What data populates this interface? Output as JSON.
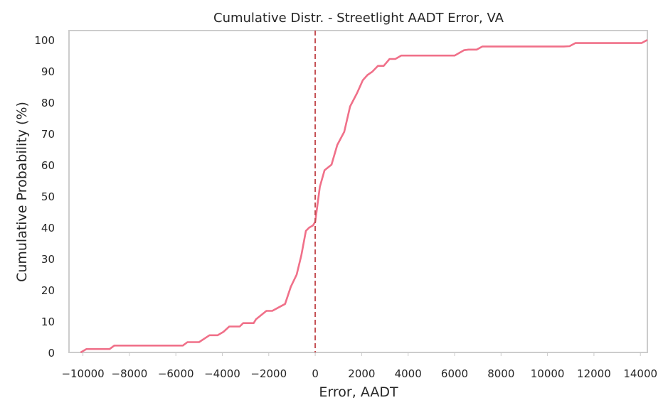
{
  "chart_data": {
    "type": "line",
    "title": "Cumulative Distr. - Streetlight AADT Error, VA",
    "xlabel": "Error, AADT",
    "ylabel": "Cumulative Probability (%)",
    "xlim": [
      -10600,
      14300
    ],
    "ylim": [
      0,
      103
    ],
    "x_ticks": [
      -10000,
      -8000,
      -6000,
      -4000,
      -2000,
      0,
      2000,
      4000,
      6000,
      8000,
      10000,
      12000,
      14000
    ],
    "x_tick_labels": [
      "−10000",
      "−8000",
      "−6000",
      "−4000",
      "−2000",
      "0",
      "2000",
      "4000",
      "6000",
      "8000",
      "10000",
      "12000",
      "14000"
    ],
    "y_ticks": [
      0,
      10,
      20,
      30,
      40,
      50,
      60,
      70,
      80,
      90,
      100
    ],
    "y_tick_labels": [
      "0",
      "10",
      "20",
      "30",
      "40",
      "50",
      "60",
      "70",
      "80",
      "90",
      "100"
    ],
    "grid": false,
    "reference_line": {
      "x": 0,
      "style": "dashed",
      "color": "#c44e52"
    },
    "series": [
      {
        "color": "#f07089",
        "x": [
          -10100,
          -9850,
          -8850,
          -8650,
          -5700,
          -5500,
          -5000,
          -4550,
          -4200,
          -3950,
          -3700,
          -3250,
          -3100,
          -2650,
          -2550,
          -2100,
          -1850,
          -1550,
          -1300,
          -1050,
          -800,
          -600,
          -400,
          -250,
          -100,
          0,
          200,
          400,
          700,
          950,
          1250,
          1500,
          1800,
          2050,
          2250,
          2450,
          2700,
          2950,
          3200,
          3450,
          3700,
          6000,
          6400,
          6600,
          6950,
          7200,
          10700,
          10950,
          11200,
          14050,
          14300
        ],
        "y": [
          0,
          1.1,
          1.1,
          2.2,
          2.2,
          3.3,
          3.3,
          5.5,
          5.5,
          6.6,
          8.3,
          8.3,
          9.4,
          9.4,
          10.6,
          13.3,
          13.3,
          14.5,
          15.5,
          21.0,
          24.9,
          31.0,
          38.9,
          40.0,
          40.6,
          41.8,
          53.0,
          58.3,
          60.1,
          66.4,
          70.6,
          78.7,
          83.0,
          87.1,
          88.8,
          89.8,
          91.7,
          91.7,
          93.9,
          93.9,
          95.0,
          95.0,
          96.7,
          96.9,
          96.9,
          97.9,
          97.9,
          98.0,
          99.0,
          99.0,
          100.0
        ]
      }
    ]
  }
}
